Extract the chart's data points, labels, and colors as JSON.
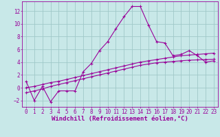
{
  "xlabel": "Windchill (Refroidissement éolien,°C)",
  "ylabel": "",
  "background_color": "#c8e8e8",
  "grid_color": "#a0c8c8",
  "line_color": "#990099",
  "xlim": [
    -0.5,
    23.5
  ],
  "ylim": [
    -3,
    13.5
  ],
  "xticks": [
    0,
    1,
    2,
    3,
    4,
    5,
    6,
    7,
    8,
    9,
    10,
    11,
    12,
    13,
    14,
    15,
    16,
    17,
    18,
    19,
    20,
    21,
    22,
    23
  ],
  "yticks": [
    -2,
    0,
    2,
    4,
    6,
    8,
    10,
    12
  ],
  "line1_x": [
    0,
    1,
    2,
    3,
    4,
    5,
    6,
    7,
    8,
    9,
    10,
    11,
    12,
    13,
    14,
    15,
    16,
    17,
    18,
    19,
    20,
    21,
    22,
    23
  ],
  "line1_y": [
    1,
    -2,
    0.2,
    -2.2,
    -0.5,
    -0.5,
    -0.5,
    2.5,
    3.8,
    5.8,
    7.2,
    9.2,
    11.1,
    12.7,
    12.7,
    9.8,
    7.2,
    7.0,
    5.0,
    5.2,
    5.8,
    5.0,
    4.0,
    4.2
  ],
  "line2_x": [
    0,
    1,
    2,
    3,
    4,
    5,
    6,
    7,
    8,
    9,
    10,
    11,
    12,
    13,
    14,
    15,
    16,
    17,
    18,
    19,
    20,
    21,
    22,
    23
  ],
  "line2_y": [
    0.0,
    0.2,
    0.5,
    0.8,
    1.0,
    1.3,
    1.6,
    1.9,
    2.2,
    2.5,
    2.8,
    3.1,
    3.4,
    3.7,
    4.0,
    4.2,
    4.4,
    4.6,
    4.8,
    5.0,
    5.1,
    5.2,
    5.3,
    5.4
  ],
  "line3_x": [
    0,
    1,
    2,
    3,
    4,
    5,
    6,
    7,
    8,
    9,
    10,
    11,
    12,
    13,
    14,
    15,
    16,
    17,
    18,
    19,
    20,
    21,
    22,
    23
  ],
  "line3_y": [
    -0.8,
    -0.5,
    -0.2,
    0.2,
    0.5,
    0.8,
    1.1,
    1.4,
    1.7,
    2.0,
    2.3,
    2.6,
    2.9,
    3.2,
    3.5,
    3.7,
    3.9,
    4.0,
    4.1,
    4.2,
    4.3,
    4.35,
    4.4,
    4.45
  ],
  "xlabel_fontsize": 6.5,
  "tick_fontsize": 5.5,
  "line_width": 0.8,
  "marker": "+"
}
